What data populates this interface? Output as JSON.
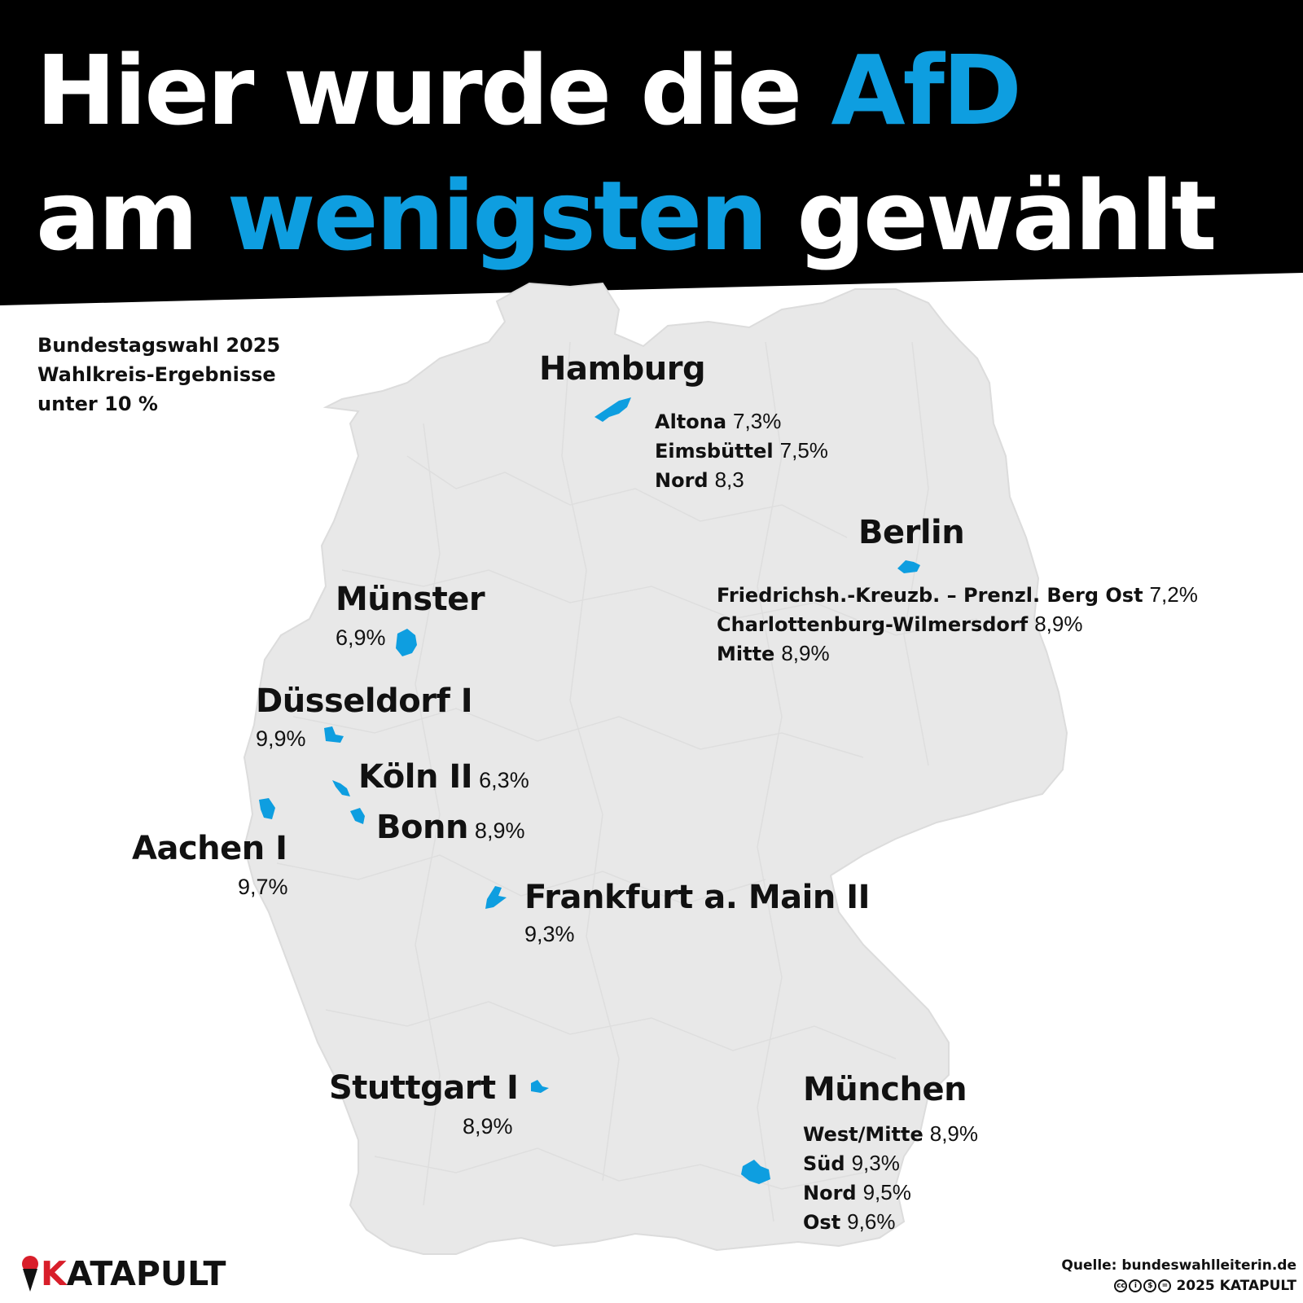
{
  "title": {
    "line1_part1": "Hier wurde die ",
    "line1_part2": "AfD",
    "line2_part1": "am ",
    "line2_part2": "wenigsten",
    "line2_part3": " gewählt"
  },
  "subtitle": [
    "Bundestagswahl 2025",
    "Wahlkreis-Ergebnisse",
    "unter 10 %"
  ],
  "colors": {
    "highlight": "#0e9ee0",
    "header_bg": "#000000",
    "land": "#e8e8e8",
    "brand_red": "#d81e2a"
  },
  "places": {
    "hamburg": {
      "name": "Hamburg",
      "districts": [
        {
          "name": "Altona",
          "value": "7,3%"
        },
        {
          "name": "Eimsbüttel",
          "value": "7,5%"
        },
        {
          "name": "Nord",
          "value": "8,3"
        }
      ]
    },
    "berlin": {
      "name": "Berlin",
      "districts": [
        {
          "name": "Friedrichsh.-Kreuzb. – Prenzl. Berg Ost",
          "value": "7,2%"
        },
        {
          "name": "Charlottenburg-Wilmersdorf",
          "value": "8,9%"
        },
        {
          "name": "Mitte",
          "value": "8,9%"
        }
      ]
    },
    "muenster": {
      "name": "Münster",
      "value": "6,9%"
    },
    "duesseldorf": {
      "name": "Düsseldorf I",
      "value": "9,9%"
    },
    "koeln": {
      "name": "Köln II",
      "value": "6,3%"
    },
    "bonn": {
      "name": "Bonn",
      "value": "8,9%"
    },
    "aachen": {
      "name": "Aachen I",
      "value": "9,7%"
    },
    "frankfurt": {
      "name": "Frankfurt a. Main II",
      "value": "9,3%"
    },
    "stuttgart": {
      "name": "Stuttgart I",
      "value": "8,9%"
    },
    "muenchen": {
      "name": "München",
      "districts": [
        {
          "name": "West/Mitte",
          "value": "8,9%"
        },
        {
          "name": "Süd",
          "value": "9,3%"
        },
        {
          "name": "Nord",
          "value": "9,5%"
        },
        {
          "name": "Ost",
          "value": "9,6%"
        }
      ]
    }
  },
  "footer": {
    "logo_first": "K",
    "logo_rest": "ATAPULT",
    "source": "Quelle: bundeswahlleiterin.de",
    "copyright": "2025 KATAPULT"
  }
}
